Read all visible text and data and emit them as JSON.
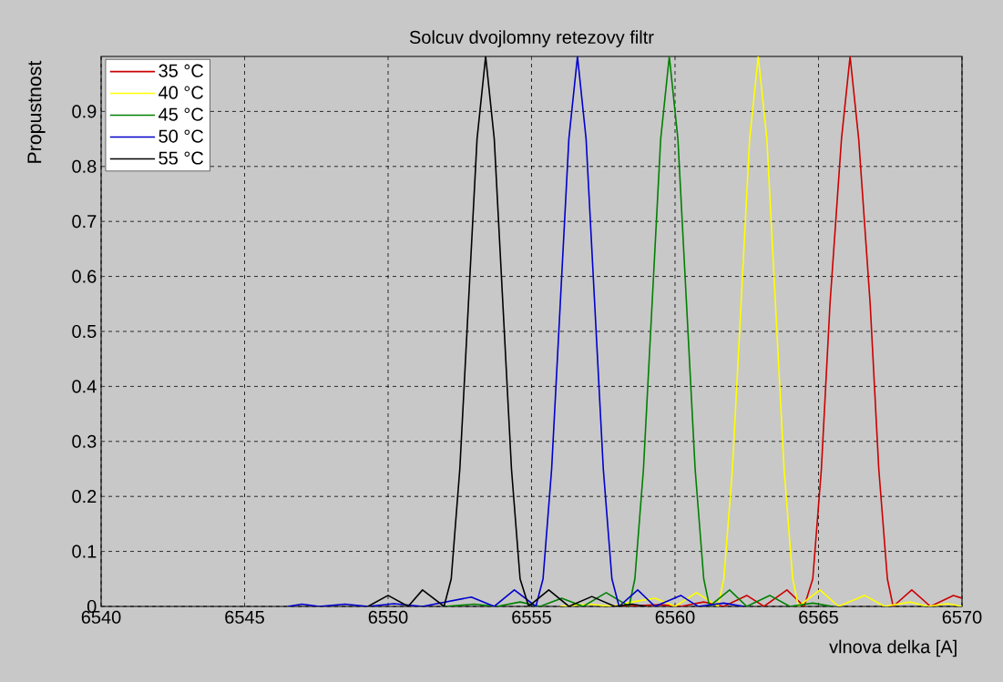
{
  "chart_data": {
    "type": "line",
    "title": "Solcuv dvojlomny retezovy filtr",
    "xlabel": "vlnova delka [A]",
    "ylabel": "Propustnost",
    "xlim": [
      6540,
      6570
    ],
    "ylim": [
      0,
      1
    ],
    "xticks": [
      6540,
      6545,
      6550,
      6555,
      6560,
      6565,
      6570
    ],
    "yticks": [
      0,
      0.1,
      0.2,
      0.3,
      0.4,
      0.5,
      0.6,
      0.7,
      0.8,
      0.9
    ],
    "grid": true,
    "legend": "top left",
    "series": [
      {
        "name": "35 °C",
        "color": "#cc0000",
        "x": [
          6558,
          6559.5,
          6560.2,
          6561,
          6561.7,
          6562.5,
          6563.1,
          6563.9,
          6564.5,
          6564.8,
          6565.1,
          6565.4,
          6565.8,
          6566.1,
          6566.4,
          6566.8,
          6567.1,
          6567.4,
          6567.6,
          6568.25,
          6568.9,
          6569.7,
          6570
        ],
        "values": [
          0,
          0.003,
          0,
          0.008,
          0,
          0.02,
          0,
          0.03,
          0,
          0.05,
          0.25,
          0.55,
          0.85,
          1,
          0.85,
          0.55,
          0.25,
          0.05,
          0,
          0.03,
          0,
          0.02,
          0.015
        ]
      },
      {
        "name": "40 °C",
        "color": "#ffff00",
        "x": [
          6556,
          6557,
          6557.8,
          6558.5,
          6559.3,
          6560,
          6560.75,
          6561.5,
          6561.7,
          6562,
          6562.3,
          6562.6,
          6562.9,
          6563.2,
          6563.5,
          6563.8,
          6564.1,
          6564.3,
          6565.05,
          6565.7,
          6566.6,
          6567.3,
          6568.2,
          6568.8,
          6569.5,
          6570
        ],
        "values": [
          0,
          0.004,
          0,
          0.008,
          0.015,
          0,
          0.025,
          0,
          0.05,
          0.25,
          0.55,
          0.85,
          1,
          0.85,
          0.55,
          0.25,
          0.05,
          0,
          0.03,
          0,
          0.02,
          0,
          0.008,
          0,
          0.005,
          0
        ]
      },
      {
        "name": "45 °C",
        "color": "#008000",
        "x": [
          6552,
          6553,
          6553.8,
          6554.6,
          6555.3,
          6556.05,
          6556.8,
          6557.6,
          6558.4,
          6558.6,
          6558.9,
          6559.2,
          6559.5,
          6559.8,
          6560.1,
          6560.4,
          6560.7,
          6561.0,
          6561.2,
          6561.9,
          6562.5,
          6563.3,
          6564,
          6564.8,
          6565.5
        ],
        "values": [
          0,
          0.004,
          0,
          0.008,
          0,
          0.015,
          0,
          0.025,
          0,
          0.05,
          0.25,
          0.55,
          0.85,
          1,
          0.85,
          0.55,
          0.25,
          0.05,
          0,
          0.03,
          0,
          0.02,
          0,
          0.006,
          0
        ]
      },
      {
        "name": "50 °C",
        "color": "#0000cc",
        "x": [
          6546.5,
          6547,
          6547.6,
          6548.5,
          6549.3,
          6550.2,
          6551.2,
          6552.9,
          6553.7,
          6554.4,
          6555.15,
          6555.4,
          6555.7,
          6556.0,
          6556.3,
          6556.6,
          6556.9,
          6557.2,
          6557.5,
          6557.8,
          6558.05,
          6558.7,
          6559.3,
          6560.2,
          6560.8,
          6561.7,
          6562.4
        ],
        "values": [
          0,
          0.004,
          0,
          0.004,
          0,
          0.005,
          0,
          0.017,
          0,
          0.03,
          0,
          0.05,
          0.25,
          0.55,
          0.85,
          1,
          0.85,
          0.55,
          0.25,
          0.05,
          0,
          0.03,
          0,
          0.02,
          0,
          0.006,
          0
        ]
      },
      {
        "name": "55 °C",
        "color": "#000000",
        "x": [
          6549.3,
          6550.0,
          6550.7,
          6551.2,
          6551.95,
          6552.2,
          6552.5,
          6552.8,
          6553.1,
          6553.4,
          6553.7,
          6554.0,
          6554.3,
          6554.6,
          6554.9,
          6555.6,
          6556.3,
          6557.1,
          6557.9,
          6558.5,
          6559
        ],
        "values": [
          0,
          0.02,
          0,
          0.03,
          0,
          0.05,
          0.25,
          0.55,
          0.85,
          1,
          0.85,
          0.55,
          0.25,
          0.05,
          0,
          0.03,
          0,
          0.018,
          0,
          0.004,
          0
        ]
      }
    ]
  }
}
